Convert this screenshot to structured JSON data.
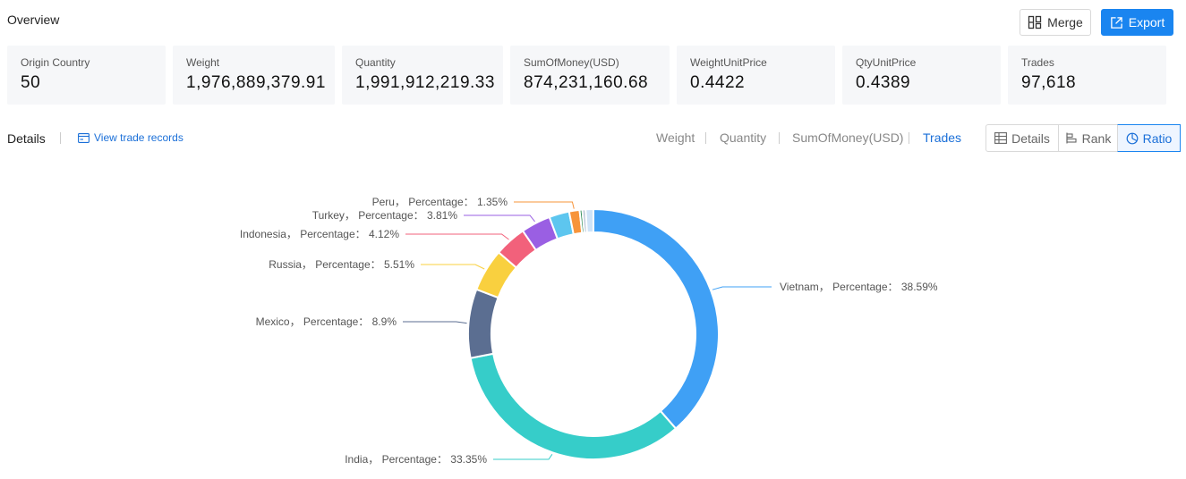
{
  "header": {
    "title": "Overview",
    "merge_label": "Merge",
    "export_label": "Export"
  },
  "stats": [
    {
      "label": "Origin Country",
      "value": "50"
    },
    {
      "label": "Weight",
      "value": "1,976,889,379.91"
    },
    {
      "label": "Quantity",
      "value": "1,991,912,219.33"
    },
    {
      "label": "SumOfMoney(USD)",
      "value": "874,231,160.68"
    },
    {
      "label": "WeightUnitPrice",
      "value": "0.4422"
    },
    {
      "label": "QtyUnitPrice",
      "value": "0.4389"
    },
    {
      "label": "Trades",
      "value": "97,618"
    }
  ],
  "toolbar": {
    "details_label": "Details",
    "view_records_label": "View trade records",
    "metric_tabs": [
      "Weight",
      "Quantity",
      "SumOfMoney(USD)",
      "Trades"
    ],
    "active_metric": "Trades",
    "view_buttons": [
      "Details",
      "Rank",
      "Ratio"
    ],
    "active_view": "Ratio"
  },
  "chart_data": {
    "type": "pie",
    "variant": "donut",
    "label_suffix": "Percentage",
    "slices": [
      {
        "name": "Vietnam",
        "value": 38.59,
        "label": "Vietnam， Percentage： 38.59%",
        "color": "#3fa0f5"
      },
      {
        "name": "India",
        "value": 33.35,
        "label": "India， Percentage： 33.35%",
        "color": "#36cdc9"
      },
      {
        "name": "Mexico",
        "value": 8.9,
        "label": "Mexico， Percentage： 8.9%",
        "color": "#5b6e91"
      },
      {
        "name": "Russia",
        "value": 5.51,
        "label": "Russia， Percentage： 5.51%",
        "color": "#f9d03f"
      },
      {
        "name": "Indonesia",
        "value": 4.12,
        "label": "Indonesia， Percentage： 4.12%",
        "color": "#f2617b"
      },
      {
        "name": "Turkey",
        "value": 3.81,
        "label": "Turkey， Percentage： 3.81%",
        "color": "#9a5fe3"
      },
      {
        "name": "",
        "value": 2.6,
        "label": "",
        "color": "#5dc6ef"
      },
      {
        "name": "Peru",
        "value": 1.35,
        "label": "Peru， Percentage： 1.35%",
        "color": "#f7943a"
      },
      {
        "name": "",
        "value": 0.35,
        "label": "",
        "color": "#2e8b57"
      },
      {
        "name": "",
        "value": 0.42,
        "label": "",
        "color": "#b6c3d6"
      },
      {
        "name": "",
        "value": 1.0,
        "label": "",
        "color": "#cfe3f7"
      }
    ]
  },
  "colors": {
    "accent": "#1a85f0",
    "card_bg": "#f6f7f9"
  }
}
